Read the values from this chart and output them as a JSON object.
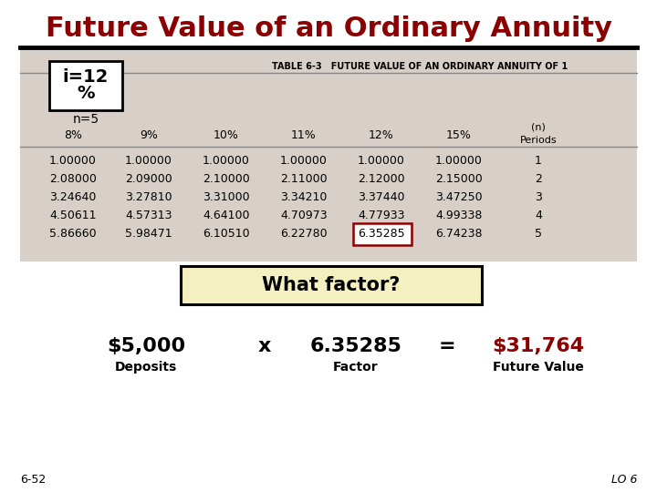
{
  "title": "Future Value of an Ordinary Annuity",
  "title_color": "#8B0000",
  "title_fontsize": 22,
  "bg_color": "#FFFFFF",
  "table_title": "TABLE 6-3   FUTURE VALUE OF AN ORDINARY ANNUITY OF 1",
  "col_headers": [
    "8%",
    "9%",
    "10%",
    "11%",
    "12%",
    "15%"
  ],
  "table_data": [
    [
      "1.00000",
      "1.00000",
      "1.00000",
      "1.00000",
      "1.00000",
      "1.00000",
      "1"
    ],
    [
      "2.08000",
      "2.09000",
      "2.10000",
      "2.11000",
      "2.12000",
      "2.15000",
      "2"
    ],
    [
      "3.24640",
      "3.27810",
      "3.31000",
      "3.34210",
      "3.37440",
      "3.47250",
      "3"
    ],
    [
      "4.50611",
      "4.57313",
      "4.64100",
      "4.70973",
      "4.77933",
      "4.99338",
      "4"
    ],
    [
      "5.86660",
      "5.98471",
      "6.10510",
      "6.22780",
      "6.35285",
      "6.74238",
      "5"
    ]
  ],
  "highlight_cell_row": 4,
  "highlight_cell_col": 4,
  "highlight_color": "#8B0000",
  "i_label_line1": "i=12",
  "i_label_line2": "%",
  "n_label": "n=5",
  "table_bg_color": "#D8D0C8",
  "what_factor_text": "What factor?",
  "what_factor_bg": "#F5F0C0",
  "deposit_text": "$5,000",
  "deposit_label": "Deposits",
  "factor_text": "6.35285",
  "factor_label": "Factor",
  "result_text": "$31,764",
  "result_color": "#8B0000",
  "result_label": "Future Value",
  "times_text": "x",
  "equals_text": "=",
  "footer_left": "6-52",
  "footer_right": "LO 6"
}
